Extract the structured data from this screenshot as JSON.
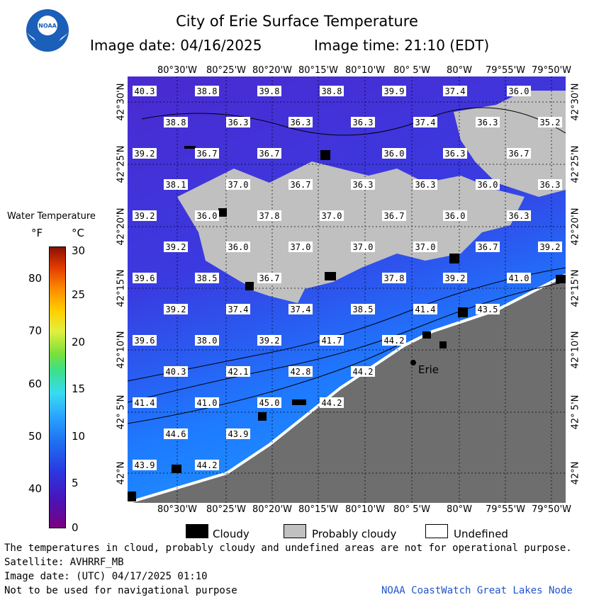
{
  "header": {
    "title": "City of Erie Surface Temperature",
    "date_label": "Image date: 04/16/2025",
    "time_label": "Image time: 21:10 (EDT)"
  },
  "logo": {
    "text": "NOAA",
    "icon": "noaa-logo-icon"
  },
  "colors": {
    "water_deep": "#5030d0",
    "water_warm": "#1e88ff",
    "land": "#6e6e6e",
    "cloudy": "#000000",
    "probably_cloudy": "#c0c0c0",
    "undefined": "#ffffff"
  },
  "axes": {
    "lon_top": [
      "80°30'W",
      "80°25'W",
      "80°20'W",
      "80°15'W",
      "80°10'W",
      "80° 5'W",
      "80°W",
      "79°55'W",
      "79°50'W"
    ],
    "lon_bottom": [
      "80°30'W",
      "80°25'W",
      "80°20'W",
      "80°15'W",
      "80°10'W",
      "80° 5'W",
      "80°W",
      "79°55'W",
      "79°50'W"
    ],
    "lat_left": [
      "42°30'N",
      "42°25'N",
      "42°20'N",
      "42°15'N",
      "42°10'N",
      "42° 5'N",
      "42°N"
    ],
    "lat_right": [
      "42°30'N",
      "42°25'N",
      "42°20'N",
      "42°15'N",
      "42°10'N",
      "42° 5'N",
      "42°N"
    ]
  },
  "legend": {
    "title": "Water Temperature",
    "unit_f": "°F",
    "unit_c": "°C",
    "fahrenheit_ticks": [
      "80",
      "70",
      "60",
      "50",
      "40"
    ],
    "celsius_ticks": [
      "30",
      "25",
      "20",
      "15",
      "10",
      "5",
      "0"
    ]
  },
  "map_labels": {
    "city": "Erie",
    "temps": [
      "40.3",
      "38.8",
      "39.8",
      "38.8",
      "39.9",
      "37.4",
      "36.0",
      "38.8",
      "36.3",
      "36.3",
      "36.3",
      "37.4",
      "36.3",
      "35.2",
      "39.2",
      "36.7",
      "36.7",
      "36.0",
      "36.3",
      "36.7",
      "38.1",
      "37.0",
      "36.7",
      "36.3",
      "36.3",
      "36.0",
      "36.3",
      "39.2",
      "36.0",
      "37.8",
      "37.0",
      "36.7",
      "36.0",
      "36.3",
      "39.2",
      "36.0",
      "37.0",
      "37.0",
      "37.0",
      "36.7",
      "39.2",
      "39.6",
      "38.5",
      "36.7",
      "37.8",
      "39.2",
      "41.0",
      "39.2",
      "37.4",
      "37.4",
      "38.5",
      "41.4",
      "43.5",
      "39.6",
      "38.0",
      "39.2",
      "41.7",
      "44.2",
      "40.3",
      "42.1",
      "42.8",
      "44.2",
      "41.4",
      "41.0",
      "45.0",
      "44.2",
      "44.6",
      "43.9",
      "43.9",
      "44.2"
    ]
  },
  "key": {
    "cloudy": "Cloudy",
    "probably_cloudy": "Probably cloudy",
    "undefined": "Undefined"
  },
  "footer": {
    "note": "The temperatures in cloud, probably cloudy and undefined areas are not for operational purpose.",
    "satellite": "Satellite: AVHRRF_MB",
    "utc_date": "Image date: (UTC) 04/17/2025  01:10",
    "nav_warning": "Not to be used for navigational purpose",
    "credit": "NOAA CoastWatch Great Lakes Node"
  }
}
